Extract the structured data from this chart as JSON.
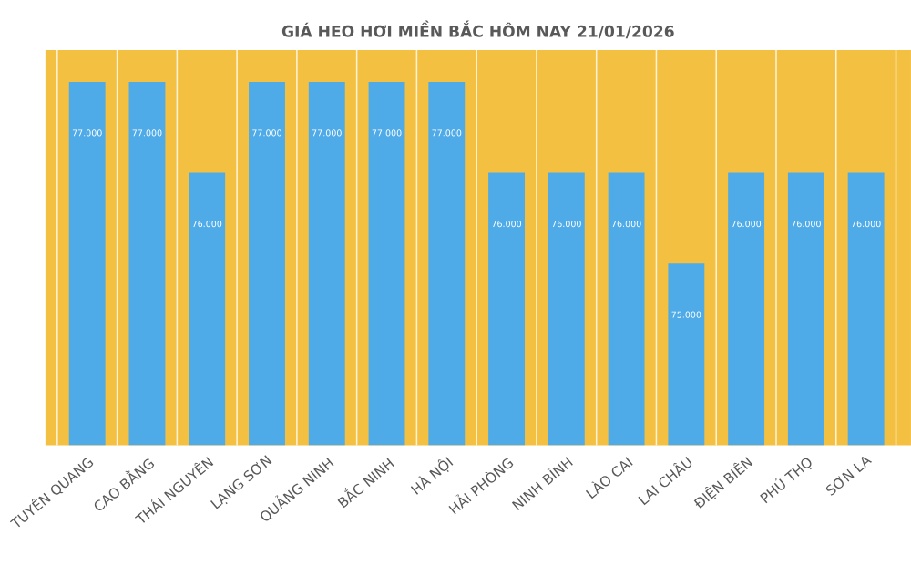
{
  "chart_data": {
    "type": "bar",
    "title": "GIÁ HEO HƠI MIỀN BẮC HÔM NAY 21/01/2026",
    "categories": [
      "TUYÊN QUANG",
      "CAO BẰNG",
      "THÁI NGUYÊN",
      "LẠNG SƠN",
      "QUẢNG NINH",
      "BẮC NINH",
      "HÀ NỘI",
      "HẢI PHÒNG",
      "NINH BÌNH",
      "LÀO CAI",
      "LAI CHÂU",
      "ĐIỆN BIÊN",
      "PHÚ THỌ",
      "SƠN LA"
    ],
    "values": [
      77000,
      77000,
      76000,
      77000,
      77000,
      77000,
      77000,
      76000,
      76000,
      76000,
      75000,
      76000,
      76000,
      76000
    ],
    "value_labels": [
      "77.000",
      "77.000",
      "76.000",
      "77.000",
      "77.000",
      "77.000",
      "77.000",
      "76.000",
      "76.000",
      "76.000",
      "75.000",
      "76.000",
      "76.000",
      "76.000"
    ],
    "color": "#4fabe8",
    "ylim": [
      73000,
      77350
    ],
    "grid": "x"
  }
}
